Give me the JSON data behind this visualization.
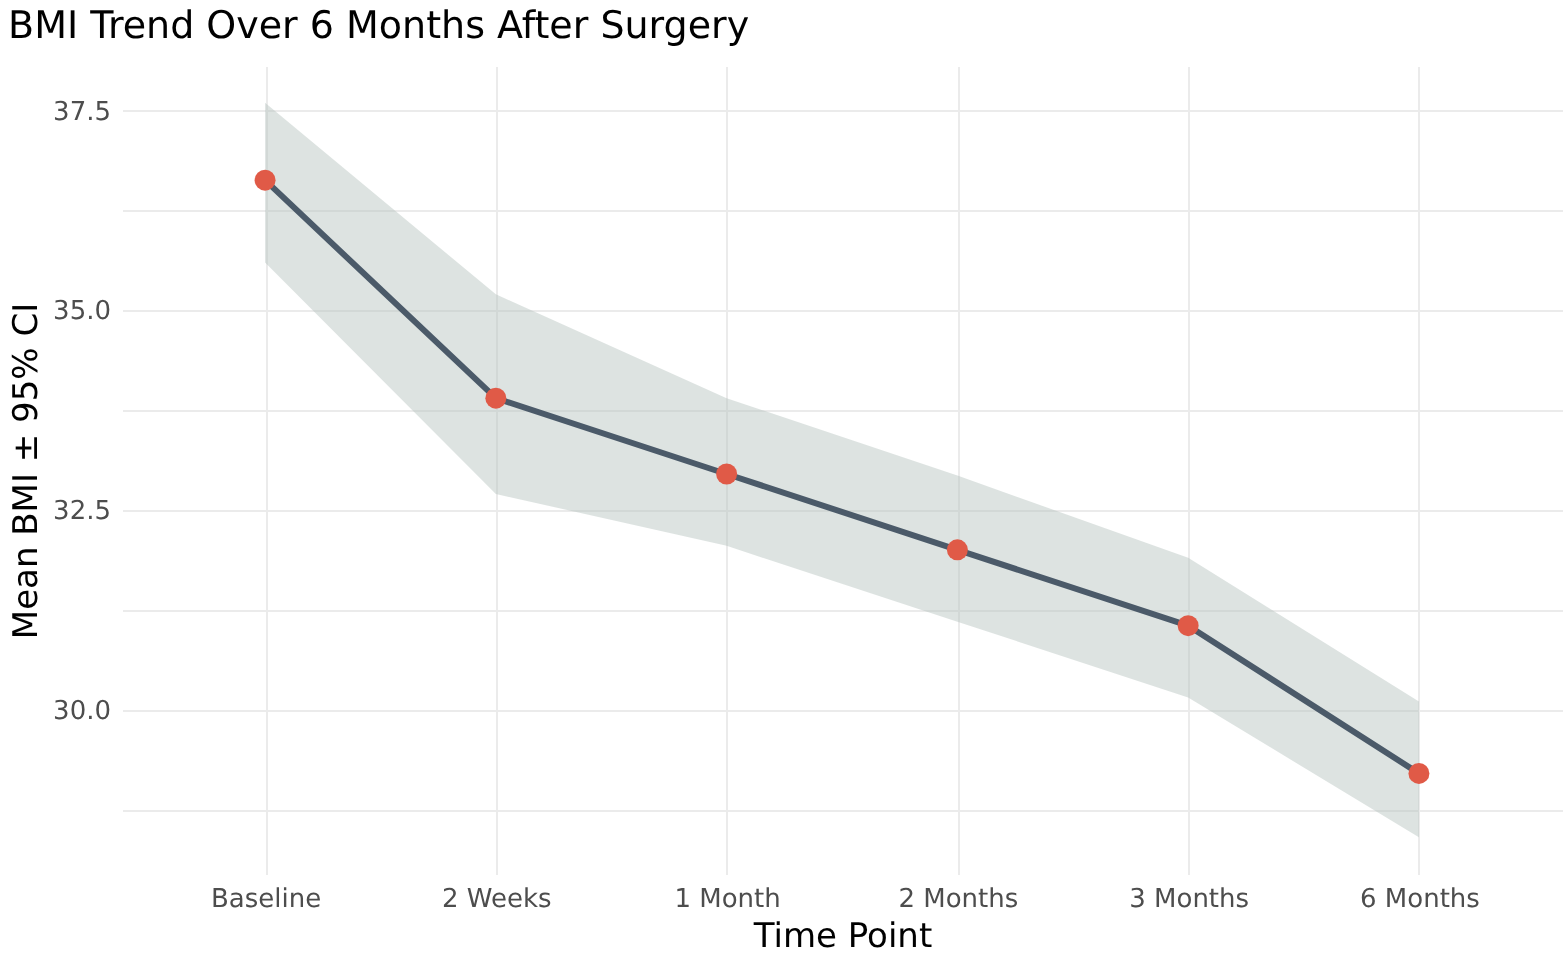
{
  "chart_data": {
    "type": "line",
    "title": "BMI Trend Over 6 Months After Surgery",
    "xlabel": "Time Point",
    "ylabel": "Mean BMI ± 95% CI",
    "categories": [
      "Baseline",
      "2 Weeks",
      "1 Month",
      "2 Months",
      "3 Months",
      "6 Months"
    ],
    "series": [
      {
        "color": "#4b5a69",
        "values": [
          36.63,
          33.9,
          32.95,
          32.0,
          31.05,
          29.2
        ],
        "lower": [
          35.6,
          32.7,
          32.05,
          31.1,
          30.15,
          28.4
        ],
        "upper": [
          37.6,
          35.2,
          33.9,
          32.93,
          31.9,
          30.1
        ]
      }
    ],
    "ylim": [
      27.94,
      38.06
    ],
    "yticks": [
      {
        "value": 28.75,
        "label": null
      },
      {
        "value": 30,
        "label": "30.0"
      },
      {
        "value": 31.25,
        "label": null
      },
      {
        "value": 32.5,
        "label": "32.5"
      },
      {
        "value": 33.75,
        "label": null
      },
      {
        "value": 35,
        "label": "35.0"
      },
      {
        "value": 36.25,
        "label": null
      },
      {
        "value": 37.5,
        "label": "37.5"
      }
    ],
    "grid": true,
    "marker": "circle",
    "line_style": "solid"
  }
}
